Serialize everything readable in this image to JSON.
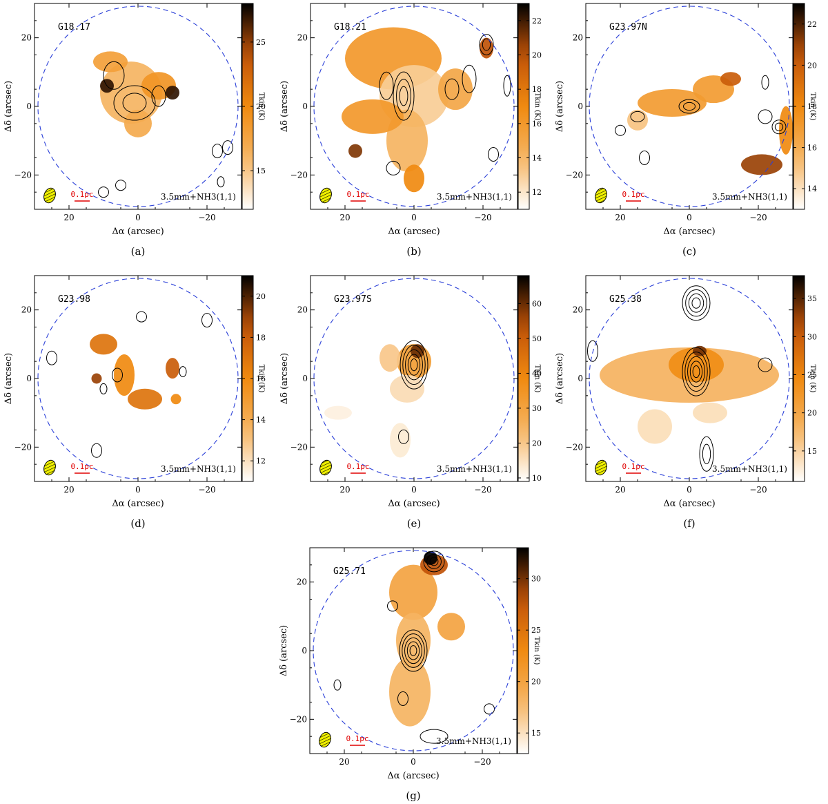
{
  "figure": {
    "colormap": {
      "low": "#ffffff",
      "mid1": "#f5b462",
      "mid2": "#f08a10",
      "mid3": "#c05208",
      "high": "#000000"
    },
    "circle_color": "#2a3fd8",
    "scalebar_color": "#e00000",
    "beam_color": "#f0f000"
  },
  "chart_data": [
    {
      "type": "heatmap",
      "panel_label": "(a)",
      "source_name": "G18.17",
      "xlabel": "Δα (arcsec)",
      "ylabel": "Δδ (arcsec)",
      "colorbar_label": "Tkin (K)",
      "xlim": [
        30,
        -30
      ],
      "ylim": [
        -30,
        30
      ],
      "xticks": [
        20,
        0,
        -20
      ],
      "xtick_labels": [
        "20",
        "0",
        "−20"
      ],
      "yticks": [
        20,
        0,
        -20
      ],
      "ytick_labels": [
        "20",
        "0",
        "−20"
      ],
      "color_range": [
        12,
        28
      ],
      "colorbar_ticks": [
        15,
        20,
        25
      ],
      "annotation": "3.5mm+NH3(1,1)",
      "scalebar_label": "0.1pc",
      "circle_radius_arcsec": 29,
      "emission_blobs": [
        {
          "x": 2,
          "y": 4,
          "rx": 9,
          "ry": 9,
          "t": 16
        },
        {
          "x": -6,
          "y": 6,
          "rx": 5,
          "ry": 4,
          "t": 19
        },
        {
          "x": -10,
          "y": 4,
          "rx": 2,
          "ry": 2,
          "t": 27
        },
        {
          "x": 8,
          "y": 13,
          "rx": 5,
          "ry": 3,
          "t": 18
        },
        {
          "x": 0,
          "y": -5,
          "rx": 4,
          "ry": 4,
          "t": 17
        },
        {
          "x": 9,
          "y": 6,
          "rx": 2,
          "ry": 2,
          "t": 27
        }
      ],
      "contours": [
        {
          "x": 1,
          "y": 1,
          "rx": 6,
          "ry": 5,
          "levels": 2
        },
        {
          "x": 7,
          "y": 9,
          "rx": 3,
          "ry": 4,
          "levels": 1
        },
        {
          "x": -6,
          "y": 3,
          "rx": 2,
          "ry": 3,
          "levels": 1
        },
        {
          "x": -23,
          "y": -13,
          "rx": 1.5,
          "ry": 2,
          "levels": 1
        },
        {
          "x": -26,
          "y": -12,
          "rx": 1.5,
          "ry": 2,
          "levels": 1
        },
        {
          "x": 10,
          "y": -25,
          "rx": 1.5,
          "ry": 1.5,
          "levels": 1
        },
        {
          "x": 5,
          "y": -23,
          "rx": 1.5,
          "ry": 1.5,
          "levels": 1
        },
        {
          "x": -24,
          "y": -22,
          "rx": 1,
          "ry": 1.5,
          "levels": 1
        }
      ]
    },
    {
      "type": "heatmap",
      "panel_label": "(b)",
      "source_name": "G18.21",
      "xlabel": "Δα (arcsec)",
      "ylabel": "Δδ (arcsec)",
      "colorbar_label": "Tkin (K)",
      "xlim": [
        30,
        -30
      ],
      "ylim": [
        -30,
        30
      ],
      "xticks": [
        20,
        0,
        -20
      ],
      "xtick_labels": [
        "20",
        "0",
        "−20"
      ],
      "yticks": [
        20,
        0,
        -20
      ],
      "ytick_labels": [
        "20",
        "0",
        "−20"
      ],
      "color_range": [
        11,
        23
      ],
      "colorbar_ticks": [
        12,
        14,
        16,
        18,
        20,
        22
      ],
      "annotation": "3.5mm+NH3(1,1)",
      "scalebar_label": "0.1pc",
      "circle_radius_arcsec": 29,
      "emission_blobs": [
        {
          "x": 6,
          "y": 14,
          "rx": 14,
          "ry": 9,
          "t": 16
        },
        {
          "x": 0,
          "y": 3,
          "rx": 10,
          "ry": 9,
          "t": 13
        },
        {
          "x": 2,
          "y": -10,
          "rx": 6,
          "ry": 9,
          "t": 14
        },
        {
          "x": 12,
          "y": -3,
          "rx": 9,
          "ry": 5,
          "t": 16
        },
        {
          "x": -12,
          "y": 5,
          "rx": 5,
          "ry": 6,
          "t": 15
        },
        {
          "x": 0,
          "y": -21,
          "rx": 3,
          "ry": 4,
          "t": 17
        },
        {
          "x": -21,
          "y": 17,
          "rx": 2,
          "ry": 3,
          "t": 20
        },
        {
          "x": 17,
          "y": -13,
          "rx": 2,
          "ry": 2,
          "t": 21
        }
      ],
      "contours": [
        {
          "x": 3,
          "y": 3,
          "rx": 3,
          "ry": 7,
          "levels": 3
        },
        {
          "x": -11,
          "y": 5,
          "rx": 2,
          "ry": 3,
          "levels": 1
        },
        {
          "x": -21,
          "y": 18,
          "rx": 2,
          "ry": 3,
          "levels": 2
        },
        {
          "x": 8,
          "y": 6,
          "rx": 2,
          "ry": 4,
          "levels": 1
        },
        {
          "x": -16,
          "y": 8,
          "rx": 2,
          "ry": 4,
          "levels": 1
        },
        {
          "x": -27,
          "y": 6,
          "rx": 1,
          "ry": 3,
          "levels": 1
        },
        {
          "x": 6,
          "y": -18,
          "rx": 2,
          "ry": 2,
          "levels": 1
        },
        {
          "x": -23,
          "y": -14,
          "rx": 1.5,
          "ry": 2,
          "levels": 1
        }
      ]
    },
    {
      "type": "heatmap",
      "panel_label": "(c)",
      "source_name": "G23.97N",
      "xlabel": "Δα (arcsec)",
      "ylabel": "Δδ (arcsec)",
      "colorbar_label": "Tkin (K)",
      "xlim": [
        30,
        -30
      ],
      "ylim": [
        -30,
        30
      ],
      "xticks": [
        20,
        0,
        -20
      ],
      "xtick_labels": [
        "20",
        "0",
        "−20"
      ],
      "yticks": [
        20,
        0,
        -20
      ],
      "ytick_labels": [
        "20",
        "0",
        "−20"
      ],
      "color_range": [
        13,
        23
      ],
      "colorbar_ticks": [
        14,
        16,
        18,
        20,
        22
      ],
      "annotation": "3.5mm+NH3(1,1)",
      "scalebar_label": "0.1pc",
      "circle_radius_arcsec": 29,
      "emission_blobs": [
        {
          "x": 5,
          "y": 1,
          "rx": 10,
          "ry": 4,
          "t": 17
        },
        {
          "x": -7,
          "y": 5,
          "rx": 6,
          "ry": 4,
          "t": 17
        },
        {
          "x": -12,
          "y": 8,
          "rx": 3,
          "ry": 2,
          "t": 20
        },
        {
          "x": -21,
          "y": -17,
          "rx": 6,
          "ry": 3,
          "t": 21
        },
        {
          "x": -28,
          "y": -7,
          "rx": 2,
          "ry": 7,
          "t": 18
        },
        {
          "x": 15,
          "y": -4,
          "rx": 3,
          "ry": 3,
          "t": 15
        }
      ],
      "contours": [
        {
          "x": 0,
          "y": 0,
          "rx": 3,
          "ry": 2,
          "levels": 2
        },
        {
          "x": 15,
          "y": -3,
          "rx": 2,
          "ry": 1.5,
          "levels": 1
        },
        {
          "x": -22,
          "y": -3,
          "rx": 2,
          "ry": 2,
          "levels": 1
        },
        {
          "x": -26,
          "y": -6,
          "rx": 2,
          "ry": 2,
          "levels": 2
        },
        {
          "x": -22,
          "y": 7,
          "rx": 1,
          "ry": 2,
          "levels": 1
        },
        {
          "x": 13,
          "y": -15,
          "rx": 1.5,
          "ry": 2,
          "levels": 1
        },
        {
          "x": 20,
          "y": -7,
          "rx": 1.5,
          "ry": 1.5,
          "levels": 1
        }
      ]
    },
    {
      "type": "heatmap",
      "panel_label": "(d)",
      "source_name": "G23.98",
      "xlabel": "Δα (arcsec)",
      "ylabel": "Δδ (arcsec)",
      "colorbar_label": "Tkin (K)",
      "xlim": [
        30,
        -30
      ],
      "ylim": [
        -30,
        30
      ],
      "xticks": [
        20,
        0,
        -20
      ],
      "xtick_labels": [
        "20",
        "0",
        "−20"
      ],
      "yticks": [
        20,
        0,
        -20
      ],
      "ytick_labels": [
        "20",
        "0",
        "−20"
      ],
      "color_range": [
        11,
        21
      ],
      "colorbar_ticks": [
        12,
        14,
        16,
        18,
        20
      ],
      "annotation": "3.5mm+NH3(1,1)",
      "scalebar_label": "0.1pc",
      "circle_radius_arcsec": 29,
      "emission_blobs": [
        {
          "x": 10,
          "y": 10,
          "rx": 4,
          "ry": 3,
          "t": 17
        },
        {
          "x": 4,
          "y": 1,
          "rx": 3,
          "ry": 6,
          "t": 16
        },
        {
          "x": -2,
          "y": -6,
          "rx": 5,
          "ry": 3,
          "t": 17
        },
        {
          "x": -10,
          "y": 3,
          "rx": 2,
          "ry": 3,
          "t": 18
        },
        {
          "x": 12,
          "y": 0,
          "rx": 1.5,
          "ry": 1.5,
          "t": 19
        },
        {
          "x": -11,
          "y": -6,
          "rx": 1.5,
          "ry": 1.5,
          "t": 16
        }
      ],
      "contours": [
        {
          "x": 6,
          "y": 1,
          "rx": 1.5,
          "ry": 2,
          "levels": 1
        },
        {
          "x": 10,
          "y": -3,
          "rx": 1,
          "ry": 1.5,
          "levels": 1
        },
        {
          "x": -13,
          "y": 2,
          "rx": 1,
          "ry": 1.5,
          "levels": 1
        },
        {
          "x": -1,
          "y": 18,
          "rx": 1.5,
          "ry": 1.5,
          "levels": 1
        },
        {
          "x": -20,
          "y": 17,
          "rx": 1.5,
          "ry": 2,
          "levels": 1
        },
        {
          "x": 25,
          "y": 6,
          "rx": 1.5,
          "ry": 2,
          "levels": 1
        },
        {
          "x": 12,
          "y": -21,
          "rx": 1.5,
          "ry": 2,
          "levels": 1
        }
      ]
    },
    {
      "type": "heatmap",
      "panel_label": "(e)",
      "source_name": "G23.97S",
      "xlabel": "Δα (arcsec)",
      "ylabel": "Δδ (arcsec)",
      "colorbar_label": "Tkin (K)",
      "xlim": [
        30,
        -30
      ],
      "ylim": [
        -30,
        30
      ],
      "xticks": [
        20,
        0,
        -20
      ],
      "xtick_labels": [
        "20",
        "0",
        "−20"
      ],
      "yticks": [
        20,
        0,
        -20
      ],
      "ytick_labels": [
        "20",
        "0",
        "−20"
      ],
      "color_range": [
        9,
        68
      ],
      "colorbar_ticks": [
        10,
        20,
        30,
        40,
        50,
        60
      ],
      "annotation": "3.5mm+NH3(1,1)",
      "scalebar_label": "0.1pc",
      "circle_radius_arcsec": 29,
      "emission_blobs": [
        {
          "x": 0,
          "y": 5,
          "rx": 5,
          "ry": 5,
          "t": 32
        },
        {
          "x": -1,
          "y": 8,
          "rx": 2,
          "ry": 2,
          "t": 60
        },
        {
          "x": 2,
          "y": -3,
          "rx": 5,
          "ry": 4,
          "t": 16
        },
        {
          "x": 7,
          "y": 6,
          "rx": 3,
          "ry": 4,
          "t": 20
        },
        {
          "x": 4,
          "y": -18,
          "rx": 3,
          "ry": 5,
          "t": 13
        },
        {
          "x": 22,
          "y": -10,
          "rx": 4,
          "ry": 2,
          "t": 12
        }
      ],
      "contours": [
        {
          "x": 0,
          "y": 4,
          "rx": 4,
          "ry": 7,
          "levels": 5
        },
        {
          "x": 3,
          "y": -17,
          "rx": 1.5,
          "ry": 2,
          "levels": 1
        }
      ]
    },
    {
      "type": "heatmap",
      "panel_label": "(f)",
      "source_name": "G25.38",
      "xlabel": "Δα (arcsec)",
      "ylabel": "Δδ (arcsec)",
      "colorbar_label": "Tkin (K)",
      "xlim": [
        30,
        -30
      ],
      "ylim": [
        -30,
        30
      ],
      "xticks": [
        20,
        0,
        -20
      ],
      "xtick_labels": [
        "20",
        "0",
        "−20"
      ],
      "yticks": [
        20,
        0,
        -20
      ],
      "ytick_labels": [
        "20",
        "0",
        "−20"
      ],
      "color_range": [
        11,
        38
      ],
      "colorbar_ticks": [
        15,
        20,
        25,
        30,
        35
      ],
      "annotation": "3.5mm+NH3(1,1)",
      "scalebar_label": "0.1pc",
      "circle_radius_arcsec": 29,
      "emission_blobs": [
        {
          "x": 0,
          "y": 1,
          "rx": 26,
          "ry": 8,
          "t": 18
        },
        {
          "x": -2,
          "y": 4,
          "rx": 8,
          "ry": 5,
          "t": 24
        },
        {
          "x": -3,
          "y": 8,
          "rx": 2,
          "ry": 1.5,
          "t": 34
        },
        {
          "x": 10,
          "y": -14,
          "rx": 5,
          "ry": 5,
          "t": 14
        },
        {
          "x": -6,
          "y": -10,
          "rx": 5,
          "ry": 3,
          "t": 14
        }
      ],
      "contours": [
        {
          "x": -2,
          "y": 2,
          "rx": 4,
          "ry": 7,
          "levels": 5
        },
        {
          "x": -2,
          "y": 22,
          "rx": 4,
          "ry": 5,
          "levels": 4
        },
        {
          "x": -5,
          "y": -22,
          "rx": 2,
          "ry": 5,
          "levels": 2
        },
        {
          "x": -22,
          "y": 4,
          "rx": 2,
          "ry": 2,
          "levels": 1
        },
        {
          "x": 28,
          "y": 8,
          "rx": 1.5,
          "ry": 3,
          "levels": 1
        }
      ]
    },
    {
      "type": "heatmap",
      "panel_label": "(g)",
      "source_name": "G25.71",
      "xlabel": "Δα (arcsec)",
      "ylabel": "Δδ (arcsec)",
      "colorbar_label": "Tkin (K)",
      "xlim": [
        30,
        -30
      ],
      "ylim": [
        -30,
        30
      ],
      "xticks": [
        20,
        0,
        -20
      ],
      "xtick_labels": [
        "20",
        "0",
        "−20"
      ],
      "yticks": [
        20,
        0,
        -20
      ],
      "ytick_labels": [
        "20",
        "0",
        "−20"
      ],
      "color_range": [
        13,
        33
      ],
      "colorbar_ticks": [
        15,
        20,
        25,
        30
      ],
      "annotation": "3.5mm+NH3(1,1)",
      "scalebar_label": "0.1pc",
      "circle_radius_arcsec": 29,
      "emission_blobs": [
        {
          "x": 0,
          "y": 17,
          "rx": 7,
          "ry": 8,
          "t": 20
        },
        {
          "x": 0,
          "y": 3,
          "rx": 5,
          "ry": 8,
          "t": 18
        },
        {
          "x": 1,
          "y": -12,
          "rx": 6,
          "ry": 10,
          "t": 18
        },
        {
          "x": -6,
          "y": 25,
          "rx": 4,
          "ry": 3,
          "t": 28
        },
        {
          "x": -5,
          "y": 27,
          "rx": 2,
          "ry": 2,
          "t": 33
        },
        {
          "x": -11,
          "y": 7,
          "rx": 4,
          "ry": 4,
          "t": 20
        }
      ],
      "contours": [
        {
          "x": 0,
          "y": 0,
          "rx": 4,
          "ry": 6,
          "levels": 5
        },
        {
          "x": -6,
          "y": 26,
          "rx": 3,
          "ry": 3,
          "levels": 3
        },
        {
          "x": -6,
          "y": -25,
          "rx": 4,
          "ry": 2,
          "levels": 1
        },
        {
          "x": 3,
          "y": -14,
          "rx": 1.5,
          "ry": 2,
          "levels": 1
        },
        {
          "x": -22,
          "y": -17,
          "rx": 1.5,
          "ry": 1.5,
          "levels": 1
        },
        {
          "x": 22,
          "y": -10,
          "rx": 1,
          "ry": 1.5,
          "levels": 1
        },
        {
          "x": 6,
          "y": 13,
          "rx": 1.5,
          "ry": 1.5,
          "levels": 1
        }
      ]
    }
  ]
}
